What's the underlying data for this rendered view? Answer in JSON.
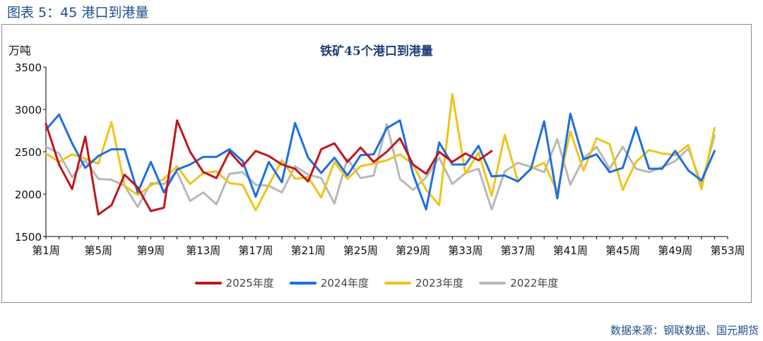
{
  "figure_caption": "图表 5：45 港口到港量",
  "source_note": "数据来源：钢联数据、国元期货",
  "chart_data": {
    "type": "line",
    "title": "铁矿45个港口到港量",
    "ylabel": "万吨",
    "xlabel": "",
    "ylim": [
      1500,
      3500
    ],
    "yticks": [
      1500,
      2000,
      2500,
      3000,
      3500
    ],
    "grid": false,
    "legend_position": "bottom",
    "x_tick_labels": [
      "第1周",
      "第5周",
      "第9周",
      "第13周",
      "第17周",
      "第21周",
      "第25周",
      "第29周",
      "第33周",
      "第37周",
      "第41周",
      "第45周",
      "第49周",
      "第53周"
    ],
    "x_tick_weeks": [
      1,
      5,
      9,
      13,
      17,
      21,
      25,
      29,
      33,
      37,
      41,
      45,
      49,
      53
    ],
    "series": [
      {
        "name": "2025年度",
        "color": "#c0161e",
        "x": [
          1,
          2,
          3,
          4,
          5,
          6,
          7,
          8,
          9,
          10,
          11,
          12,
          13,
          14,
          15,
          16,
          17,
          18,
          19,
          20,
          21,
          22,
          23,
          24,
          25,
          26,
          27,
          28,
          29,
          30,
          31,
          32,
          33,
          34,
          35,
          36
        ],
        "values": [
          2830,
          2350,
          2060,
          2680,
          1760,
          1870,
          2230,
          2080,
          1800,
          1840,
          2870,
          2500,
          2260,
          2190,
          2500,
          2330,
          2510,
          2450,
          2350,
          2300,
          2150,
          2530,
          2600,
          2380,
          2550,
          2380,
          2500,
          2660,
          2350,
          2240,
          2500,
          2380,
          2480,
          2400,
          2510,
          null
        ]
      },
      {
        "name": "2024年度",
        "color": "#1c6fe0",
        "x": [
          1,
          2,
          3,
          4,
          5,
          6,
          7,
          8,
          9,
          10,
          11,
          12,
          13,
          14,
          15,
          16,
          17,
          18,
          19,
          20,
          21,
          22,
          23,
          24,
          25,
          26,
          27,
          28,
          29,
          30,
          31,
          32,
          33,
          34,
          35,
          36,
          37,
          38,
          39,
          40,
          41,
          42,
          43,
          44,
          45,
          46,
          47,
          48,
          49,
          50,
          51,
          52,
          53
        ],
        "values": [
          2760,
          2940,
          2600,
          2310,
          2450,
          2530,
          2530,
          2020,
          2380,
          2020,
          2290,
          2350,
          2440,
          2440,
          2530,
          2390,
          1970,
          2380,
          2140,
          2840,
          2430,
          2250,
          2430,
          2220,
          2460,
          2470,
          2780,
          2870,
          2240,
          1820,
          2610,
          2350,
          2350,
          2570,
          2210,
          2220,
          2150,
          2300,
          2860,
          1950,
          2950,
          2410,
          2470,
          2260,
          2310,
          2790,
          2300,
          2300,
          2510,
          2280,
          2160,
          2510,
          null
        ]
      },
      {
        "name": "2023年度",
        "color": "#f0c419",
        "x": [
          1,
          2,
          3,
          4,
          5,
          6,
          7,
          8,
          9,
          10,
          11,
          12,
          13,
          14,
          15,
          16,
          17,
          18,
          19,
          20,
          21,
          22,
          23,
          24,
          25,
          26,
          27,
          28,
          29,
          30,
          31,
          32,
          33,
          34,
          35,
          36,
          37,
          38,
          39,
          40,
          41,
          42,
          43,
          44,
          45,
          46,
          47,
          48,
          49,
          50,
          51,
          52
        ],
        "values": [
          2480,
          2380,
          2470,
          2420,
          2360,
          2850,
          2100,
          1990,
          2100,
          2180,
          2330,
          2120,
          2250,
          2270,
          2130,
          2110,
          1810,
          2110,
          2400,
          2180,
          2200,
          1960,
          2380,
          2180,
          2330,
          2360,
          2400,
          2470,
          2350,
          2050,
          1870,
          3180,
          2240,
          2490,
          1980,
          2700,
          2150,
          2300,
          2370,
          2020,
          2740,
          2280,
          2660,
          2590,
          2050,
          2380,
          2520,
          2480,
          2460,
          2580,
          2060,
          2780
        ]
      },
      {
        "name": "2022年度",
        "color": "#b8b8b8",
        "x": [
          1,
          2,
          3,
          4,
          5,
          6,
          7,
          8,
          9,
          10,
          11,
          12,
          13,
          14,
          15,
          16,
          17,
          18,
          19,
          20,
          21,
          22,
          23,
          24,
          25,
          26,
          27,
          28,
          29,
          30,
          31,
          32,
          33,
          34,
          35,
          36,
          37,
          38,
          39,
          40,
          41,
          42,
          43,
          44,
          45,
          46,
          47,
          48,
          49,
          50,
          51,
          52
        ],
        "values": [
          2560,
          2480,
          2200,
          2400,
          2180,
          2170,
          2100,
          1850,
          2130,
          2120,
          2260,
          1920,
          2020,
          1880,
          2240,
          2260,
          2110,
          2100,
          2020,
          2330,
          2230,
          2190,
          1890,
          2420,
          2190,
          2220,
          2830,
          2180,
          2050,
          2200,
          2430,
          2120,
          2250,
          2300,
          1820,
          2270,
          2370,
          2320,
          2260,
          2650,
          2110,
          2420,
          2560,
          2300,
          2560,
          2300,
          2260,
          2320,
          2390,
          2540,
          2120,
          2690
        ]
      }
    ]
  }
}
